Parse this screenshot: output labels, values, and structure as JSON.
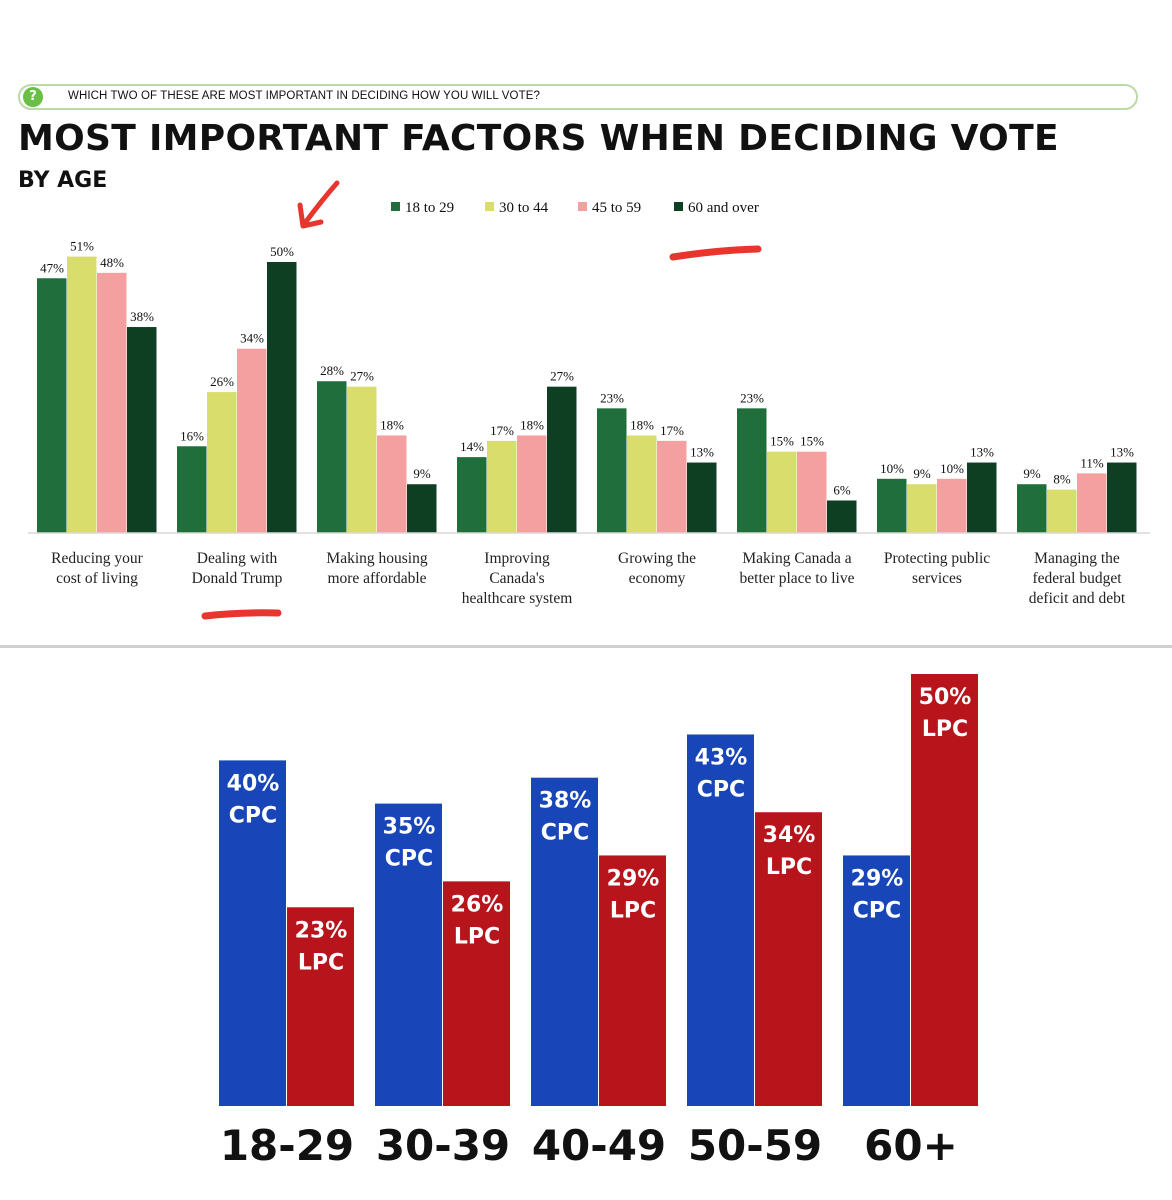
{
  "question": "WHICH TWO OF THESE ARE MOST IMPORTANT IN DECIDING HOW YOU WILL VOTE?",
  "question_icon": "question-mark-icon",
  "colors": {
    "age_18_29": "#1f6e3b",
    "age_30_44": "#d9dd6b",
    "age_45_59": "#f4a0a0",
    "age_60_over": "#0f3f22",
    "cpc": "#1846b8",
    "lpc": "#b8141c",
    "annotation": "#e8362f"
  },
  "chart_data": [
    {
      "type": "bar",
      "title": "MOST IMPORTANT FACTORS WHEN DECIDING VOTE",
      "subtitle": "BY AGE",
      "categories": [
        [
          "Reducing your",
          "cost of living"
        ],
        [
          "Dealing with",
          "Donald Trump"
        ],
        [
          "Making housing",
          "more affordable"
        ],
        [
          "Improving",
          "Canada's",
          "healthcare system"
        ],
        [
          "Growing the",
          "economy"
        ],
        [
          "Making Canada a",
          "better place to live"
        ],
        [
          "Protecting public",
          "services"
        ],
        [
          "Managing the",
          "federal budget",
          "deficit and debt"
        ]
      ],
      "series": [
        {
          "name": "18 to 29",
          "values": [
            47,
            16,
            28,
            14,
            23,
            23,
            10,
            9
          ]
        },
        {
          "name": "30 to 44",
          "values": [
            51,
            26,
            27,
            17,
            18,
            15,
            9,
            8
          ]
        },
        {
          "name": "45 to 59",
          "values": [
            48,
            34,
            18,
            18,
            17,
            15,
            10,
            11
          ]
        },
        {
          "name": "60 and over",
          "values": [
            38,
            50,
            9,
            27,
            13,
            6,
            13,
            13
          ]
        }
      ],
      "value_suffix": "%",
      "legend_position": "top-center",
      "ylim": [
        0,
        55
      ],
      "grid": false
    },
    {
      "type": "bar",
      "categories": [
        "18-29",
        "30-39",
        "40-49",
        "50-59",
        "60+"
      ],
      "series": [
        {
          "name": "CPC",
          "values": [
            40,
            35,
            38,
            43,
            29
          ]
        },
        {
          "name": "LPC",
          "values": [
            23,
            26,
            29,
            34,
            50
          ]
        }
      ],
      "value_suffix": "%",
      "ylim": [
        0,
        55
      ],
      "grid": false
    }
  ]
}
